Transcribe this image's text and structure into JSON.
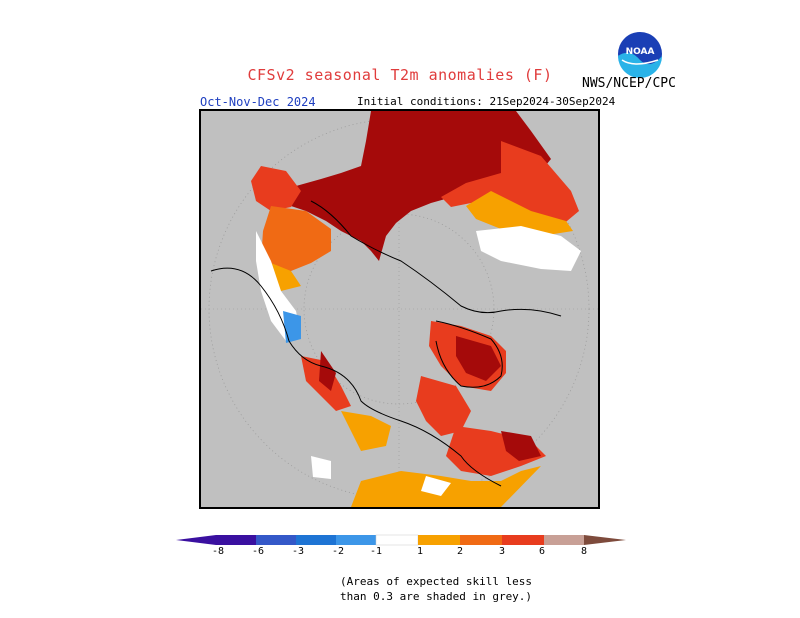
{
  "title": "CFSv2 seasonal T2m anomalies (F)",
  "agency": "NWS/NCEP/CPC",
  "logo_text": "NOAA",
  "season": "Oct-Nov-Dec 2024",
  "initial_conditions": "Initial conditions: 21Sep2024-30Sep2024",
  "colors": {
    "c_neg8": "#3a10a0",
    "c_neg6": "#3458c8",
    "c_neg3": "#1e74d4",
    "c_neg2": "#3c96e8",
    "c_neg1": "#80bef0",
    "c_zero": "#ffffff",
    "c_pos1": "#f7a100",
    "c_pos2": "#f06a14",
    "c_pos3": "#e83c1e",
    "c_pos6": "#a50a0a",
    "c_pos8": "#c8a096",
    "c_pos9": "#7e4b3c",
    "low_skill": "#c0c0c0"
  },
  "colorbar": {
    "ticks": [
      "-8",
      "-6",
      "-3",
      "-2",
      "-1",
      "1",
      "2",
      "3",
      "6",
      "8"
    ]
  },
  "note": {
    "line1": "(Areas of expected skill less",
    "line2": "than 0.3 are shaded in grey.)"
  }
}
